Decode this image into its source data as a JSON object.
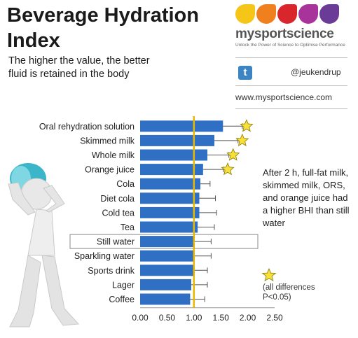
{
  "header": {
    "title_line1": "Beverage Hydration",
    "title_line2": "Index",
    "subtitle_line1": "The higher the value, the better",
    "subtitle_line2": "fluid is retained in the body"
  },
  "brand": {
    "name": "mysportscience",
    "tagline": "Unlock the Power of Science to Optimise Performance",
    "twitter_glyph": "t",
    "handle": "@jeukendrup",
    "website": "www.mysportscience.com",
    "drop_colors": [
      "#f5c518",
      "#f07f1e",
      "#d8262c",
      "#a8339a",
      "#6a3b97"
    ]
  },
  "note": {
    "text": "After 2 h, full-fat milk, skimmed milk, ORS, and orange juice had a higher BHI than still water",
    "star_text": "(all differences P<0.05)"
  },
  "chart_data": {
    "type": "bar",
    "orientation": "horizontal",
    "categories": [
      "Oral rehydration solution",
      "Skimmed milk",
      "Whole milk",
      "Orange juice",
      "Cola",
      "Diet cola",
      "Cold tea",
      "Tea",
      "Still water",
      "Sparkling water",
      "Sports drink",
      "Lager",
      "Coffee"
    ],
    "values": [
      1.54,
      1.38,
      1.25,
      1.17,
      1.12,
      1.1,
      1.1,
      1.07,
      1.0,
      1.0,
      1.0,
      0.95,
      0.93
    ],
    "error_upper": [
      1.9,
      1.82,
      1.65,
      1.55,
      1.3,
      1.4,
      1.42,
      1.38,
      1.32,
      1.32,
      1.25,
      1.25,
      1.2
    ],
    "significant": [
      true,
      true,
      true,
      true,
      false,
      false,
      false,
      false,
      false,
      false,
      false,
      false,
      false
    ],
    "highlighted": "Still water",
    "reference_line": 1.0,
    "xticks": [
      "0.00",
      "0.50",
      "1.00",
      "1.50",
      "2.00",
      "2.50"
    ],
    "xlim": [
      0,
      2.5
    ],
    "colors": {
      "bar": "#2f6fc4",
      "reference": "#e6b800",
      "star": "#f7e03a"
    }
  }
}
